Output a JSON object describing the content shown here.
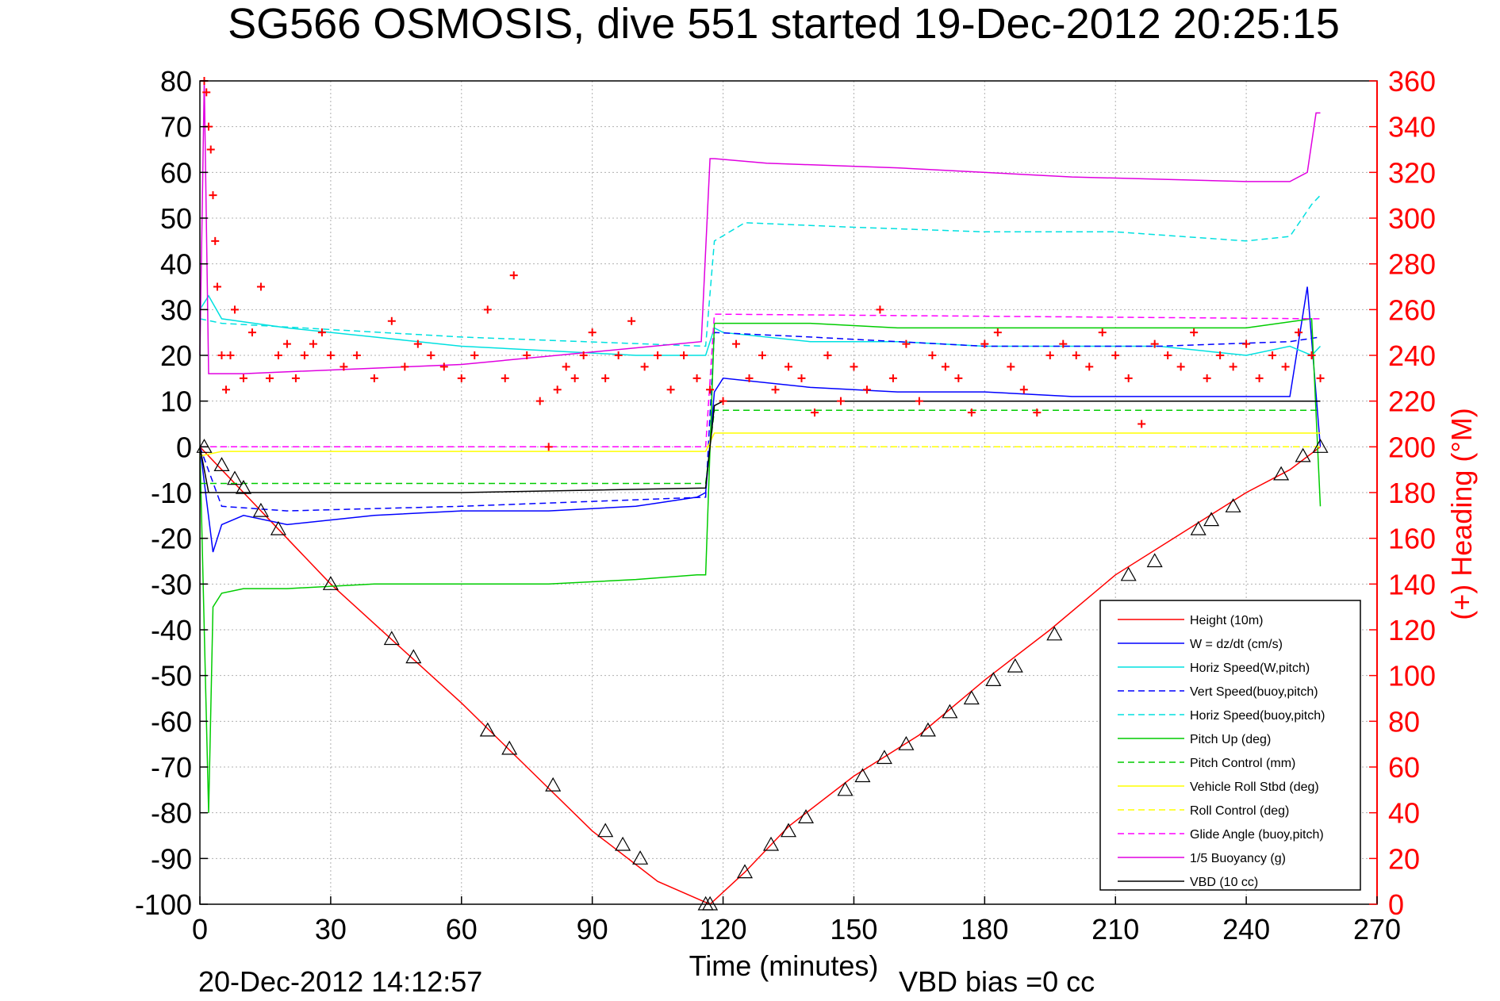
{
  "chart_data": {
    "type": "line",
    "title": "SG566 OSMOSIS, dive 551 started 19-Dec-2012 20:25:15",
    "xlabel": "Time (minutes)",
    "ylabel_right": "(+) Heading (°M)",
    "xlim": [
      0,
      270
    ],
    "ylim_left": [
      -100,
      80
    ],
    "ylim_right": [
      0,
      360
    ],
    "x_ticks": [
      0,
      30,
      60,
      90,
      120,
      150,
      180,
      210,
      240,
      270
    ],
    "y_ticks_left": [
      80,
      70,
      60,
      50,
      40,
      30,
      20,
      10,
      0,
      -10,
      -20,
      -30,
      -40,
      -50,
      -60,
      -70,
      -80,
      -90,
      -100
    ],
    "y_ticks_right": [
      360,
      340,
      320,
      300,
      280,
      260,
      240,
      220,
      200,
      180,
      160,
      140,
      120,
      100,
      80,
      60,
      40,
      20,
      0
    ],
    "grid": true,
    "legend_position": "bottom-right",
    "footer_date": "20-Dec-2012 14:12:57",
    "footer_note": "VBD bias =0 cc",
    "colors": {
      "heading": "#ff0000",
      "right_axis": "#ff0000",
      "grid": "#b0b0b0"
    },
    "series": [
      {
        "name": "Height (10m)",
        "color": "#ff0000",
        "style": "solid",
        "x": [
          0,
          5,
          10,
          20,
          30,
          45,
          60,
          75,
          90,
          105,
          117,
          125,
          135,
          150,
          165,
          180,
          195,
          210,
          225,
          240,
          250,
          257
        ],
        "y": [
          0,
          -5,
          -10,
          -20,
          -30,
          -43,
          -56,
          -70,
          -84,
          -95,
          -100,
          -93,
          -83,
          -72,
          -63,
          -51,
          -40,
          -28,
          -19,
          -10,
          -5,
          0
        ]
      },
      {
        "name": "W = dz/dt (cm/s)",
        "color": "#0000ff",
        "style": "solid",
        "x": [
          0,
          3,
          5,
          10,
          20,
          40,
          60,
          80,
          100,
          114,
          116,
          118,
          120,
          140,
          160,
          180,
          200,
          220,
          240,
          250,
          254,
          257
        ],
        "y": [
          0,
          -23,
          -17,
          -15,
          -17,
          -15,
          -14,
          -14,
          -13,
          -11,
          -10,
          12,
          15,
          13,
          12,
          12,
          11,
          11,
          11,
          11,
          35,
          0
        ]
      },
      {
        "name": "Horiz Speed(W,pitch)",
        "color": "#00e0e0",
        "style": "solid",
        "x": [
          0,
          2,
          5,
          20,
          40,
          60,
          80,
          100,
          116,
          118,
          120,
          140,
          160,
          180,
          200,
          220,
          240,
          250,
          255,
          257
        ],
        "y": [
          30,
          33,
          28,
          26,
          24,
          22,
          21,
          20,
          20,
          26,
          25,
          23,
          23,
          22,
          22,
          22,
          20,
          22,
          20,
          22
        ]
      },
      {
        "name": "Vert Speed(buoy,pitch)",
        "color": "#0000ff",
        "style": "dashed",
        "x": [
          0,
          5,
          20,
          60,
          116,
          118,
          140,
          180,
          220,
          250,
          257
        ],
        "y": [
          0,
          -13,
          -14,
          -13,
          -11,
          25,
          24,
          22,
          22,
          23,
          24
        ]
      },
      {
        "name": "Horiz Speed(buoy,pitch)",
        "color": "#00e0e0",
        "style": "dashed",
        "x": [
          0,
          5,
          60,
          116,
          118,
          125,
          150,
          180,
          210,
          240,
          250,
          255,
          257
        ],
        "y": [
          28,
          27,
          24,
          22,
          45,
          49,
          48,
          47,
          47,
          45,
          46,
          53,
          55
        ]
      },
      {
        "name": "Pitch Up (deg)",
        "color": "#00cc00",
        "style": "solid",
        "x": [
          0,
          2,
          3,
          5,
          10,
          20,
          40,
          60,
          80,
          100,
          114,
          116,
          118,
          140,
          160,
          180,
          200,
          220,
          240,
          255,
          257
        ],
        "y": [
          0,
          -80,
          -35,
          -32,
          -31,
          -31,
          -30,
          -30,
          -30,
          -29,
          -28,
          -28,
          27,
          27,
          26,
          26,
          26,
          26,
          26,
          28,
          -13
        ]
      },
      {
        "name": "Pitch Control (mm)",
        "color": "#00cc00",
        "style": "dashed",
        "x": [
          0,
          5,
          60,
          116,
          118,
          160,
          210,
          257
        ],
        "y": [
          -8,
          -8,
          -8,
          -8,
          8,
          8,
          8,
          8
        ]
      },
      {
        "name": "Vehicle Roll Stbd (deg)",
        "color": "#ffff00",
        "style": "solid",
        "x": [
          0,
          5,
          20,
          40,
          60,
          80,
          100,
          116,
          118,
          140,
          160,
          180,
          200,
          220,
          240,
          257
        ],
        "y": [
          -2,
          -1,
          -1,
          -1,
          -1,
          -1,
          -1,
          -1,
          3,
          3,
          3,
          3,
          3,
          3,
          3,
          3
        ]
      },
      {
        "name": "Roll Control (deg)",
        "color": "#ffff00",
        "style": "dashed",
        "x": [
          0,
          257
        ],
        "y": [
          0,
          0
        ]
      },
      {
        "name": "Glide Angle (buoy,pitch)",
        "color": "#ff00ff",
        "style": "dashed",
        "x": [
          0,
          116,
          118,
          257
        ],
        "y": [
          0,
          0,
          29,
          28
        ]
      },
      {
        "name": "1/5 Buoyancy (g)",
        "color": "#e000e0",
        "style": "solid",
        "x": [
          0,
          1,
          2,
          10,
          60,
          115,
          117,
          118,
          130,
          160,
          200,
          240,
          250,
          254,
          256,
          257
        ],
        "y": [
          20,
          80,
          16,
          16,
          18,
          23,
          63,
          63,
          62,
          61,
          59,
          58,
          58,
          60,
          73,
          73
        ]
      },
      {
        "name": "VBD (10 cc)",
        "color": "#000000",
        "style": "solid",
        "x": [
          0,
          2,
          60,
          116,
          118,
          120,
          160,
          200,
          240,
          257
        ],
        "y": [
          0,
          -10,
          -10,
          -9,
          9,
          10,
          10,
          10,
          10,
          10
        ]
      }
    ],
    "heading": {
      "name": "Heading",
      "color": "#ff0000",
      "marker": "+",
      "x": [
        1,
        1.5,
        2,
        2.5,
        3,
        3.5,
        4,
        5,
        6,
        7,
        8,
        10,
        12,
        14,
        16,
        18,
        20,
        22,
        24,
        26,
        28,
        30,
        33,
        36,
        40,
        44,
        47,
        50,
        53,
        56,
        60,
        63,
        66,
        70,
        72,
        75,
        78,
        80,
        82,
        84,
        86,
        88,
        90,
        93,
        96,
        99,
        102,
        105,
        108,
        111,
        114,
        117,
        120,
        123,
        126,
        129,
        132,
        135,
        138,
        141,
        144,
        147,
        150,
        153,
        156,
        159,
        162,
        165,
        168,
        171,
        174,
        177,
        180,
        183,
        186,
        189,
        192,
        195,
        198,
        201,
        204,
        207,
        210,
        213,
        216,
        219,
        222,
        225,
        228,
        231,
        234,
        237,
        240,
        243,
        246,
        249,
        252,
        255,
        257
      ],
      "y": [
        360,
        355,
        340,
        330,
        310,
        290,
        270,
        240,
        225,
        240,
        260,
        230,
        250,
        270,
        230,
        240,
        245,
        230,
        240,
        245,
        250,
        240,
        235,
        240,
        230,
        255,
        235,
        245,
        240,
        235,
        230,
        240,
        260,
        230,
        275,
        240,
        220,
        200,
        225,
        235,
        230,
        240,
        250,
        230,
        240,
        255,
        235,
        240,
        225,
        240,
        230,
        225,
        220,
        245,
        230,
        240,
        225,
        235,
        230,
        215,
        240,
        220,
        235,
        225,
        260,
        230,
        245,
        220,
        240,
        235,
        230,
        215,
        245,
        250,
        235,
        225,
        215,
        240,
        245,
        240,
        235,
        250,
        240,
        230,
        210,
        245,
        240,
        235,
        250,
        230,
        240,
        235,
        245,
        230,
        240,
        235,
        250,
        240,
        230
      ]
    },
    "markers": {
      "description": "",
      "x": [
        1,
        5,
        8,
        10,
        14,
        18,
        30,
        44,
        49,
        66,
        71,
        81,
        93,
        97,
        101,
        116,
        117,
        125,
        131,
        135,
        139,
        148,
        152,
        157,
        162,
        167,
        172,
        177,
        182,
        187,
        196,
        213,
        219,
        229,
        232,
        237,
        248,
        253,
        257
      ],
      "y": [
        0,
        -4,
        -7,
        -9,
        -14,
        -18,
        -30,
        -42,
        -46,
        -62,
        -66,
        -74,
        -84,
        -87,
        -90,
        -100,
        -100,
        -93,
        -87,
        -84,
        -81,
        -75,
        -72,
        -68,
        -65,
        -62,
        -58,
        -55,
        -51,
        -48,
        -41,
        -28,
        -25,
        -18,
        -16,
        -13,
        -6,
        -2,
        0
      ]
    }
  }
}
